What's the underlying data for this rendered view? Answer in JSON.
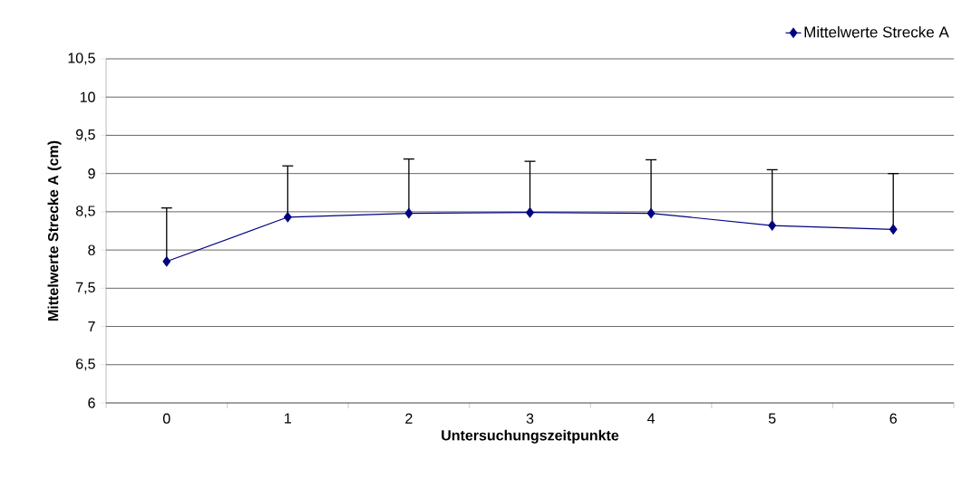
{
  "chart_data": {
    "type": "line",
    "xlabel": "Untersuchungszeitpunkte",
    "ylabel": "Mittelwerte Strecke A (cm)",
    "categories": [
      "0",
      "1",
      "2",
      "3",
      "4",
      "5",
      "6"
    ],
    "series": [
      {
        "name": "Mittelwerte Strecke A",
        "color": "#000080",
        "values": [
          7.85,
          8.43,
          8.48,
          8.49,
          8.48,
          8.32,
          8.27
        ],
        "errors": [
          [
            7.85,
            8.55
          ],
          [
            8.43,
            9.1
          ],
          [
            8.48,
            9.19
          ],
          [
            8.49,
            9.16
          ],
          [
            8.48,
            9.18
          ],
          [
            8.32,
            9.05
          ],
          [
            8.27,
            9.0
          ]
        ]
      }
    ],
    "ylim": [
      6,
      10.5
    ],
    "yticks": [
      6,
      {
        "value": 6.5,
        "label": "6,5"
      },
      7,
      {
        "value": 7.5,
        "label": "7,5"
      },
      8,
      {
        "value": 8.5,
        "label": "8,5"
      },
      9,
      {
        "value": 9.5,
        "label": "9,5"
      },
      10,
      {
        "value": 10.5,
        "label": "10,5"
      }
    ],
    "grid": "y",
    "legend": "top right",
    "marker": "diamond",
    "line_style": "solid"
  }
}
